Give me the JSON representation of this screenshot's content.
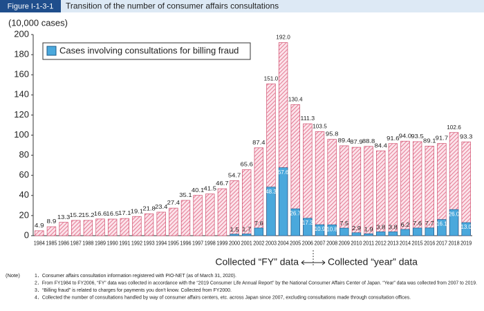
{
  "chart_data": {
    "type": "bar",
    "figure_label": "Figure I-1-3-1",
    "title": "Transition of the number of consumer affairs consultations",
    "y_axis_label": "(10,000 cases)",
    "categories": [
      "1984",
      "1985",
      "1986",
      "1987",
      "1988",
      "1989",
      "1990",
      "1991",
      "1992",
      "1993",
      "1994",
      "1995",
      "1996",
      "1997",
      "1998",
      "1999",
      "2000",
      "2001",
      "2002",
      "2003",
      "2004",
      "2005",
      "2006",
      "2007",
      "2008",
      "2009",
      "2010",
      "2011",
      "2012",
      "2013",
      "2014",
      "2015",
      "2016",
      "2017",
      "2018",
      "2019"
    ],
    "series": [
      {
        "color": "#e8a0b4",
        "values": [
          4.9,
          8.9,
          13.3,
          15.2,
          15.2,
          16.6,
          16.5,
          17.1,
          19.1,
          21.8,
          23.4,
          27.4,
          35.1,
          40.1,
          41.5,
          46.7,
          54.7,
          65.6,
          87.4,
          151.0,
          192.0,
          130.4,
          111.3,
          103.5,
          95.8,
          89.4,
          87.9,
          88.8,
          84.4,
          91.6,
          94.0,
          93.5,
          89.1,
          91.7,
          102.6,
          93.3
        ],
        "value_labels": [
          "4.9",
          "8.9",
          "13.3",
          "15.2",
          "15.2",
          "16.6",
          "16.5",
          "17.1",
          "19.1",
          "21.8",
          "23.4",
          "27.4",
          "35.1",
          "40.1",
          "41.5",
          "46.7",
          "54.7",
          "65.6",
          "87.4",
          "151.0",
          "192.0",
          "130.4",
          "111.3",
          "103.5",
          "95.8",
          "89.4",
          "87.9",
          "88.8",
          "84.4",
          "91.6",
          "94.0",
          "93.5",
          "89.1",
          "91.7",
          "102.6",
          "93.3"
        ]
      },
      {
        "name": "Cases involving consultations for billing fraud",
        "color": "#4aa8dc",
        "values": [
          null,
          null,
          null,
          null,
          null,
          null,
          null,
          null,
          null,
          null,
          null,
          null,
          null,
          null,
          null,
          null,
          1.5,
          1.7,
          7.6,
          48.3,
          67.6,
          26.7,
          17.3,
          10.9,
          10.8,
          7.5,
          2.9,
          1.9,
          3.8,
          3.8,
          6.2,
          7.6,
          7.7,
          16.1,
          26.0,
          13.0
        ],
        "value_labels": [
          null,
          null,
          null,
          null,
          null,
          null,
          null,
          null,
          null,
          null,
          null,
          null,
          null,
          null,
          null,
          null,
          "1.5",
          "1.7",
          "7.6",
          "48.3",
          "67.6",
          "26.7",
          "17.3",
          "10.9",
          "10.8",
          "7.5",
          "2.9",
          "1.9",
          "3.8",
          "3.8",
          "6.2",
          "7.6",
          "7.7",
          "16.1",
          "26.0",
          "13.0"
        ]
      }
    ],
    "ylim": [
      0,
      200
    ],
    "yticks": [
      0,
      20,
      40,
      60,
      80,
      100,
      120,
      140,
      160,
      180,
      200
    ],
    "legend": "upper left",
    "annotations": [
      "Collected “FY” data",
      "Collected “year” data"
    ],
    "note_label": "(Note)",
    "notes": [
      "1．Consumer affairs consultation information registered with PIO-NET (as of March 31, 2020).",
      "2．From FY1984 to FY2006, “FY” data was collected in accordance with the “2019 Consumer Life Annual Report” by the National Consumer Affairs Center of Japan. “Year” data was collected from 2007 to 2019.",
      "3．“Billing fraud” is related to charges for payments you don't know. Collected from FY2000.",
      "4．Collected the number of consultations handled by way of consumer affairs centers, etc. across Japan since 2007, excluding consultations made through consultation offices."
    ]
  }
}
